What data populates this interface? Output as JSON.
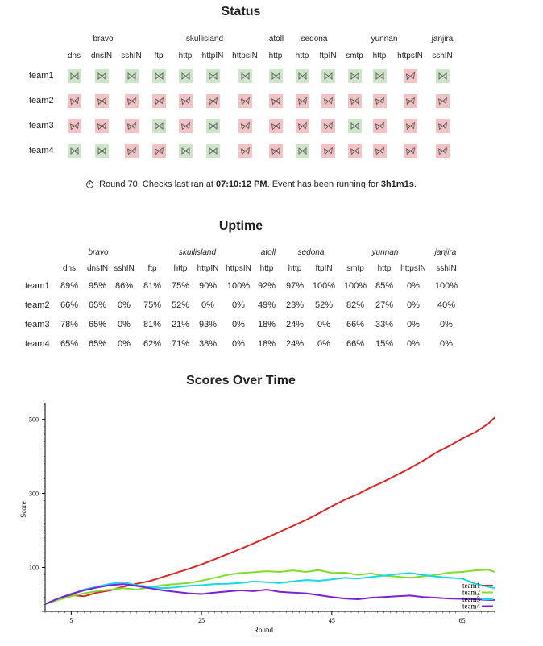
{
  "status": {
    "title": "Status",
    "groups": [
      "bravo",
      "skullisland",
      "atoll",
      "sedona",
      "yunnan",
      "janjira"
    ],
    "services": [
      "dns",
      "dnsIN",
      "sshIN",
      "ftp",
      "http",
      "httpIN",
      "httpsIN",
      "http",
      "http",
      "ftpIN",
      "smtp",
      "http",
      "httpsIN",
      "sshIN"
    ],
    "teams": [
      {
        "name": "team1",
        "states": [
          "up",
          "up",
          "up",
          "up",
          "up",
          "up",
          "up",
          "up",
          "up",
          "up",
          "up",
          "up",
          "down",
          "up"
        ]
      },
      {
        "name": "team2",
        "states": [
          "down",
          "down",
          "down",
          "down",
          "down",
          "down",
          "down",
          "down",
          "down",
          "down",
          "down",
          "down",
          "down",
          "down"
        ]
      },
      {
        "name": "team3",
        "states": [
          "down",
          "down",
          "down",
          "up",
          "down",
          "up",
          "down",
          "down",
          "down",
          "down",
          "up",
          "down",
          "down",
          "down"
        ]
      },
      {
        "name": "team4",
        "states": [
          "up",
          "up",
          "down",
          "down",
          "up",
          "up",
          "down",
          "down",
          "up",
          "down",
          "down",
          "down",
          "down",
          "down"
        ]
      }
    ],
    "round_prefix": "Round 70. Checks last ran at ",
    "round_time": "07:10:12 PM",
    "round_middle": ". Event has been running for ",
    "round_duration": "3h1m1s",
    "round_suffix": ".",
    "round_icon": "stopwatch-icon",
    "cell_icons": {
      "up": "bowtie-up-icon",
      "down": "bowtie-down-icon"
    },
    "colors": {
      "up": "#cfe5c9",
      "down": "#f3c2c4"
    }
  },
  "uptime": {
    "title": "Uptime",
    "groups": [
      "bravo",
      "skullisland",
      "atoll",
      "sedona",
      "yunnan",
      "janjira"
    ],
    "services": [
      "dns",
      "dnsIN",
      "sshIN",
      "ftp",
      "http",
      "httpIN",
      "httpsIN",
      "http",
      "http",
      "ftpIN",
      "smtp",
      "http",
      "httpsIN",
      "sshIN"
    ],
    "teams": [
      {
        "name": "team1",
        "values": [
          "89%",
          "95%",
          "86%",
          "81%",
          "75%",
          "90%",
          "100%",
          "92%",
          "97%",
          "100%",
          "100%",
          "85%",
          "0%",
          "100%"
        ]
      },
      {
        "name": "team2",
        "values": [
          "66%",
          "65%",
          "0%",
          "75%",
          "52%",
          "0%",
          "0%",
          "49%",
          "23%",
          "52%",
          "82%",
          "27%",
          "0%",
          "40%"
        ]
      },
      {
        "name": "team3",
        "values": [
          "78%",
          "65%",
          "0%",
          "81%",
          "21%",
          "93%",
          "0%",
          "18%",
          "24%",
          "0%",
          "66%",
          "33%",
          "0%",
          "0%"
        ]
      },
      {
        "name": "team4",
        "values": [
          "65%",
          "65%",
          "0%",
          "62%",
          "71%",
          "38%",
          "0%",
          "18%",
          "24%",
          "0%",
          "66%",
          "15%",
          "0%",
          "0%"
        ]
      }
    ]
  },
  "scores": {
    "title": "Scores Over Time"
  },
  "chart_data": {
    "type": "line",
    "xlabel": "Round",
    "ylabel": "Score",
    "xticks": [
      "5",
      "25",
      "45",
      "65"
    ],
    "yticks": [
      "100",
      "300",
      "500"
    ],
    "xlim": [
      1,
      70
    ],
    "ylim": [
      -10,
      545
    ],
    "legend_position": "bottom-right",
    "series": [
      {
        "name": "team1",
        "color": "#d62728",
        "x": [
          1,
          3,
          5,
          7,
          9,
          11,
          13,
          15,
          17,
          19,
          21,
          23,
          25,
          27,
          29,
          31,
          33,
          35,
          37,
          39,
          41,
          43,
          45,
          47,
          49,
          51,
          53,
          55,
          57,
          59,
          61,
          63,
          65,
          67,
          69,
          70
        ],
        "values": [
          1,
          15,
          25,
          22,
          32,
          38,
          48,
          56,
          63,
          74,
          85,
          96,
          108,
          122,
          136,
          150,
          165,
          180,
          196,
          212,
          228,
          246,
          265,
          283,
          298,
          316,
          332,
          350,
          368,
          388,
          410,
          428,
          448,
          465,
          488,
          505
        ]
      },
      {
        "name": "team2",
        "color": "#7fdd2e",
        "x": [
          1,
          3,
          5,
          7,
          9,
          11,
          13,
          15,
          17,
          19,
          21,
          23,
          25,
          27,
          29,
          31,
          33,
          35,
          37,
          39,
          41,
          43,
          45,
          47,
          49,
          51,
          53,
          55,
          57,
          59,
          61,
          63,
          65,
          67,
          69,
          70
        ],
        "values": [
          1,
          12,
          22,
          30,
          36,
          40,
          44,
          40,
          46,
          52,
          55,
          58,
          64,
          72,
          80,
          85,
          87,
          90,
          88,
          92,
          88,
          93,
          85,
          86,
          80,
          84,
          78,
          75,
          72,
          76,
          80,
          86,
          88,
          92,
          94,
          88
        ]
      },
      {
        "name": "team3",
        "color": "#19d7e6",
        "x": [
          1,
          3,
          5,
          7,
          9,
          11,
          13,
          15,
          17,
          19,
          21,
          23,
          25,
          27,
          29,
          31,
          33,
          35,
          37,
          39,
          41,
          43,
          45,
          47,
          49,
          51,
          53,
          55,
          57,
          59,
          61,
          63,
          65,
          67,
          69,
          70
        ],
        "values": [
          1,
          16,
          28,
          40,
          48,
          56,
          60,
          52,
          48,
          44,
          46,
          50,
          52,
          55,
          56,
          58,
          62,
          60,
          58,
          62,
          66,
          64,
          68,
          72,
          70,
          74,
          78,
          82,
          85,
          80,
          75,
          72,
          70,
          56,
          48,
          44
        ]
      },
      {
        "name": "team4",
        "color": "#7b1fd8",
        "x": [
          1,
          3,
          5,
          7,
          9,
          11,
          13,
          15,
          17,
          19,
          21,
          23,
          25,
          27,
          29,
          31,
          33,
          35,
          37,
          39,
          41,
          43,
          45,
          47,
          49,
          51,
          53,
          55,
          57,
          59,
          61,
          63,
          65,
          67,
          69,
          70
        ],
        "values": [
          1,
          16,
          28,
          38,
          46,
          52,
          55,
          50,
          44,
          38,
          34,
          30,
          28,
          32,
          35,
          38,
          36,
          40,
          34,
          32,
          30,
          25,
          20,
          16,
          14,
          18,
          20,
          22,
          24,
          20,
          18,
          16,
          15,
          14,
          12,
          12
        ]
      }
    ]
  }
}
